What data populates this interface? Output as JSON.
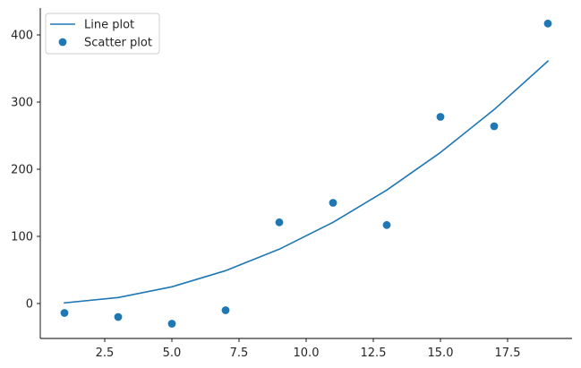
{
  "chart_data": {
    "type": "line+scatter",
    "xlim": [
      0.1,
      19.9
    ],
    "ylim": [
      -52,
      440
    ],
    "x_ticks": [
      2.5,
      5.0,
      7.5,
      10.0,
      12.5,
      15.0,
      17.5
    ],
    "x_tick_labels": [
      "2.5",
      "5.0",
      "7.5",
      "10.0",
      "12.5",
      "15.0",
      "17.5"
    ],
    "y_ticks": [
      0,
      100,
      200,
      300,
      400
    ],
    "y_tick_labels": [
      "0",
      "100",
      "200",
      "300",
      "400"
    ],
    "grid": false,
    "spines": "left-bottom",
    "legend_position": "top-left",
    "series": [
      {
        "name": "Line plot",
        "kind": "line",
        "color": "#1f77b4",
        "x": [
          1,
          3,
          5,
          7,
          9,
          11,
          13,
          15,
          17,
          19
        ],
        "y": [
          1,
          9,
          25,
          49,
          81,
          121,
          169,
          225,
          289,
          361
        ]
      },
      {
        "name": "Scatter plot",
        "kind": "scatter",
        "color": "#1f77b4",
        "x": [
          1,
          3,
          5,
          7,
          9,
          11,
          13,
          15,
          17,
          19
        ],
        "y": [
          -14,
          -20,
          -30,
          -10,
          121,
          150,
          117,
          278,
          264,
          417
        ]
      }
    ]
  }
}
